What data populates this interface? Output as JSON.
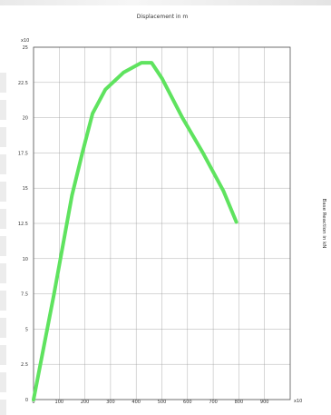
{
  "chart_data": {
    "type": "line",
    "title": "Displacement in m",
    "xlabel": "",
    "ylabel": "Base Reaction in kN",
    "x_multiplier_label": "x10",
    "y_multiplier_label": "x10",
    "xlim": [
      0,
      1000
    ],
    "ylim": [
      0,
      25
    ],
    "x_ticks": [
      "0",
      "100",
      "200",
      "300",
      "400",
      "500",
      "600",
      "700",
      "800",
      "900"
    ],
    "y_ticks": [
      "0",
      "2.5",
      "5",
      "7.5",
      "10",
      "12.5",
      "15",
      "17.5",
      "20",
      "22.5",
      "25"
    ],
    "grid": true,
    "legend": "none",
    "series": [
      {
        "color": "#5fe35f",
        "points": [
          [
            0,
            0
          ],
          [
            80,
            7.5
          ],
          [
            150,
            14.5
          ],
          [
            190,
            17.5
          ],
          [
            230,
            20.3
          ],
          [
            280,
            22.0
          ],
          [
            350,
            23.2
          ],
          [
            420,
            23.9
          ],
          [
            460,
            23.9
          ],
          [
            500,
            22.8
          ],
          [
            580,
            20.0
          ],
          [
            660,
            17.5
          ],
          [
            740,
            14.8
          ],
          [
            790,
            12.6
          ]
        ]
      }
    ]
  }
}
